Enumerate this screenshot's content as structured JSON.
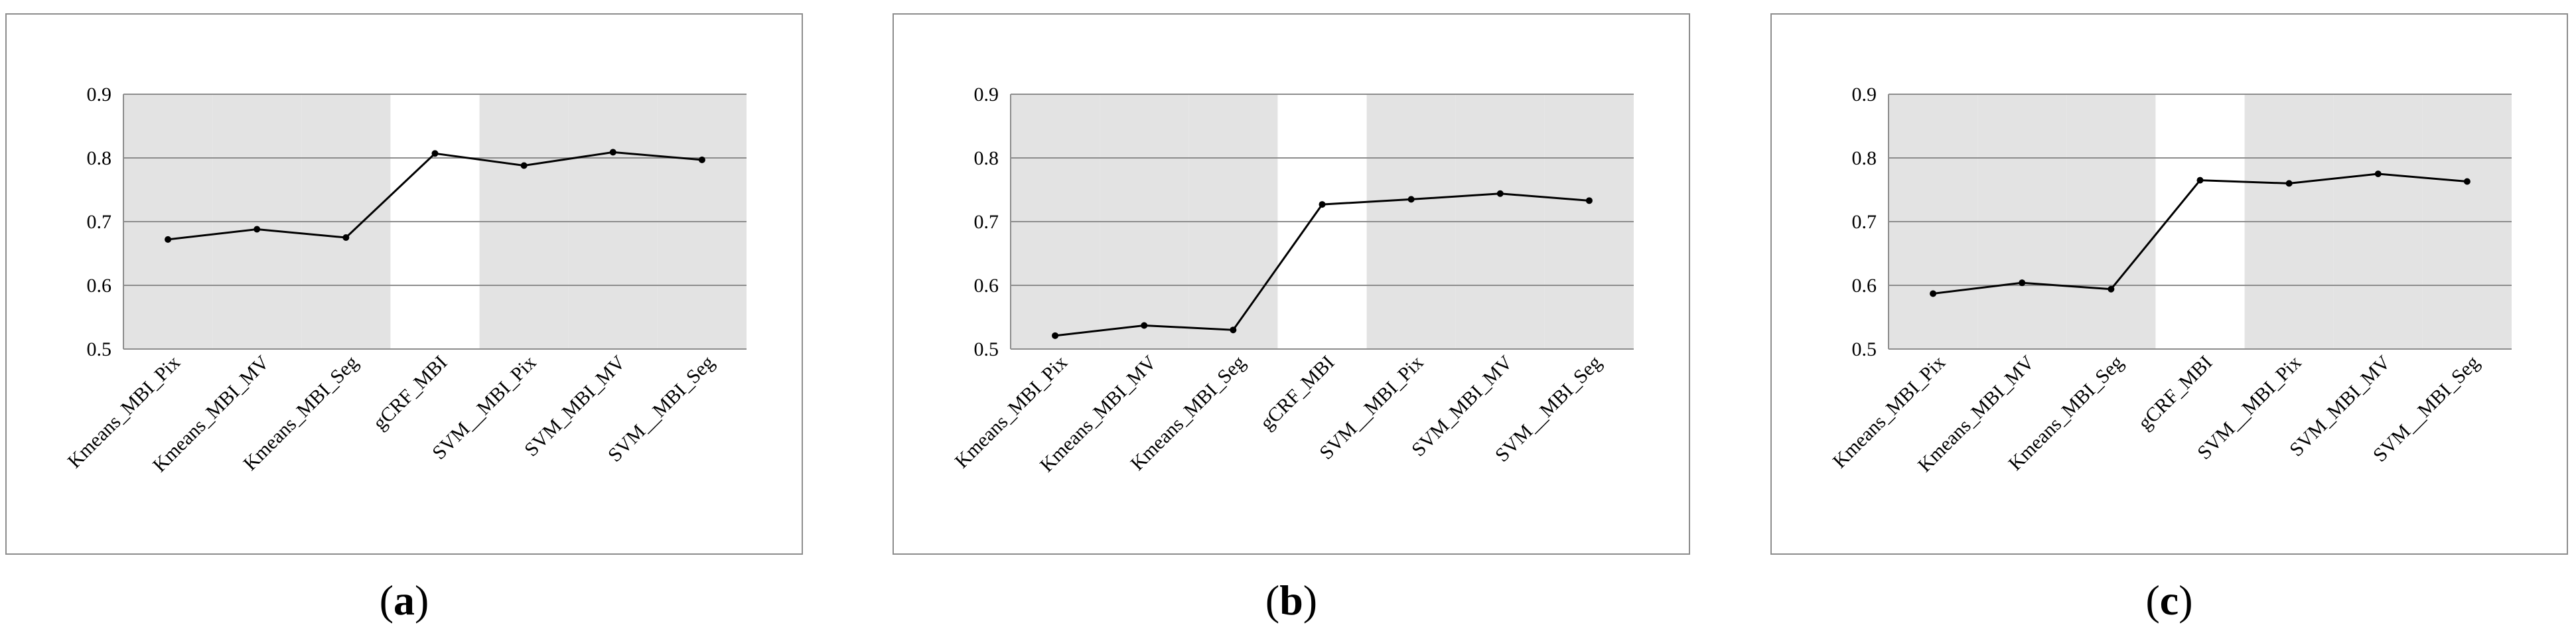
{
  "chart_data": [
    {
      "type": "line",
      "categories": [
        "Kmeans_MBI_Pix",
        "Kmeans_MBI_MV",
        "Kmeans_MBI_Seg",
        "gCRF_MBI",
        "SVM__MBI_Pix",
        "SVM_MBI_MV",
        "SVM__MBI_Seg"
      ],
      "series": [
        {
          "values": [
            0.672,
            0.688,
            0.675,
            0.807,
            0.788,
            0.809,
            0.797
          ]
        }
      ],
      "ylim": [
        0.5,
        0.9
      ],
      "yticks": [
        "0.5",
        "0.6",
        "0.7",
        "0.8",
        "0.9"
      ],
      "grid": true,
      "shaded_categories": [
        0,
        1,
        2,
        4,
        5,
        6
      ],
      "caption": "a"
    },
    {
      "type": "line",
      "categories": [
        "Kmeans_MBI_Pix",
        "Kmeans_MBI_MV",
        "Kmeans_MBI_Seg",
        "gCRF_MBI",
        "SVM__MBI_Pix",
        "SVM_MBI_MV",
        "SVM__MBI_Seg"
      ],
      "series": [
        {
          "values": [
            0.521,
            0.537,
            0.53,
            0.727,
            0.735,
            0.744,
            0.733
          ]
        }
      ],
      "ylim": [
        0.5,
        0.9
      ],
      "yticks": [
        "0.5",
        "0.6",
        "0.7",
        "0.8",
        "0.9"
      ],
      "grid": true,
      "shaded_categories": [
        0,
        1,
        2,
        4,
        5,
        6
      ],
      "caption": "b"
    },
    {
      "type": "line",
      "categories": [
        "Kmeans_MBI_Pix",
        "Kmeans_MBI_MV",
        "Kmeans_MBI_Seg",
        "gCRF_MBI",
        "SVM__MBI_Pix",
        "SVM_MBI_MV",
        "SVM__MBI_Seg"
      ],
      "series": [
        {
          "values": [
            0.587,
            0.604,
            0.594,
            0.765,
            0.76,
            0.775,
            0.763
          ]
        }
      ],
      "ylim": [
        0.5,
        0.9
      ],
      "yticks": [
        "0.5",
        "0.6",
        "0.7",
        "0.8",
        "0.9"
      ],
      "grid": true,
      "shaded_categories": [
        0,
        1,
        2,
        4,
        5,
        6
      ],
      "caption": "c"
    }
  ],
  "colors": {
    "line": "#000000",
    "shade": "#e3e3e3",
    "grid": "#8c8c8c",
    "border": "#8c8c8c"
  }
}
